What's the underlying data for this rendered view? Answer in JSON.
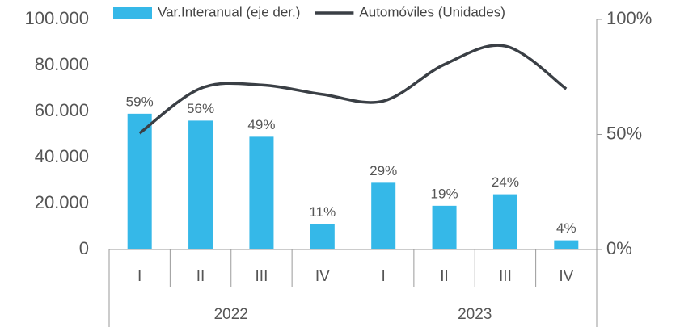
{
  "chart_data": {
    "type": "bar",
    "groups": [
      {
        "name": "2022",
        "categories": [
          "I",
          "II",
          "III",
          "IV"
        ]
      },
      {
        "name": "2023",
        "categories": [
          "I",
          "II",
          "III",
          "IV"
        ]
      }
    ],
    "series": [
      {
        "name": "Var.Interanual (eje der.)",
        "type": "bar",
        "axis": "y2",
        "color": "#35b8e8",
        "values": [
          59,
          56,
          49,
          11,
          29,
          19,
          24,
          4
        ],
        "value_labels": [
          "59%",
          "56%",
          "49%",
          "11%",
          "29%",
          "19%",
          "24%",
          "4%"
        ]
      },
      {
        "name": "Automóviles (Unidades)",
        "type": "line",
        "axis": "y",
        "color": "#3a3f45",
        "values": [
          50500,
          70000,
          71500,
          67400,
          64500,
          80400,
          88400,
          69800
        ]
      }
    ],
    "ylim": [
      0,
      100000
    ],
    "yticks": [
      {
        "value": 0,
        "label": "0"
      },
      {
        "value": 20000,
        "label": "20.000"
      },
      {
        "value": 40000,
        "label": "40.000"
      },
      {
        "value": 60000,
        "label": "60.000"
      },
      {
        "value": 80000,
        "label": "80.000"
      },
      {
        "value": 100000,
        "label": "100.000"
      }
    ],
    "y2lim": [
      0,
      100
    ],
    "y2ticks": [
      {
        "value": 0,
        "label": "0%"
      },
      {
        "value": 50,
        "label": "50%"
      },
      {
        "value": 100,
        "label": "100%"
      }
    ],
    "grid": false,
    "legend": "top"
  }
}
